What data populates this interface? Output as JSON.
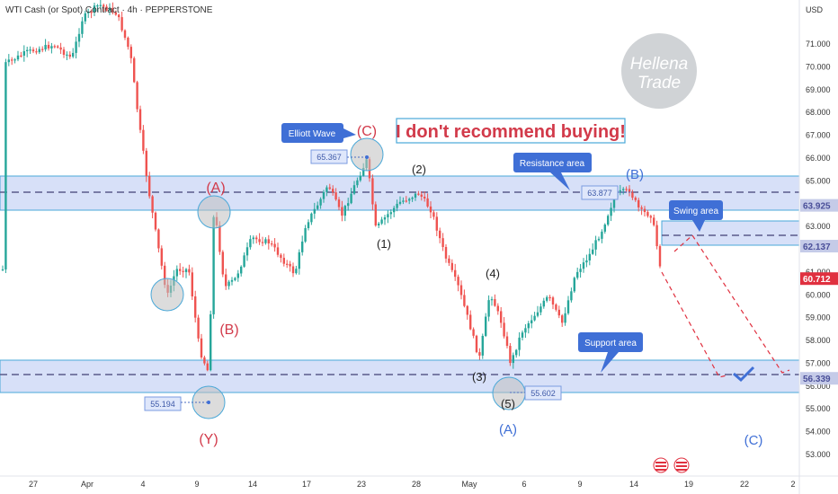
{
  "header": {
    "symbol_title": "WTI Cash (or Spot) Contract · 4h · PEPPERSTONE"
  },
  "currency": "USD",
  "price_axis": {
    "ticks": [
      "71.000",
      "70.000",
      "69.000",
      "68.000",
      "67.000",
      "66.000",
      "65.000",
      "64.000",
      "63.000",
      "62.000",
      "61.000",
      "60.000",
      "59.000",
      "58.000",
      "57.000",
      "56.000",
      "55.000",
      "54.000",
      "53.000"
    ],
    "tick_values": [
      71,
      70,
      69,
      68,
      67,
      66,
      65,
      64,
      63,
      62,
      61,
      60,
      59,
      58,
      57,
      56,
      55,
      54,
      53
    ],
    "badges": [
      {
        "label": "63.925",
        "value": 63.925,
        "color": "#ffffff",
        "bg": "#c5cbe8",
        "text_color": "#4a4f99"
      },
      {
        "label": "62.137",
        "value": 62.137,
        "color": "#ffffff",
        "bg": "#c5cbe8",
        "text_color": "#4a4f99"
      },
      {
        "label": "60.712",
        "value": 60.712,
        "bg": "#e0303f",
        "text_color": "#ffffff"
      },
      {
        "label": "56.339",
        "value": 56.339,
        "bg": "#c5cbe8",
        "text_color": "#4a4f99"
      }
    ]
  },
  "time_axis": {
    "labels": [
      "27",
      "Apr",
      "4",
      "9",
      "14",
      "17",
      "23",
      "28",
      "May",
      "6",
      "9",
      "14",
      "19",
      "22",
      "2"
    ]
  },
  "watermark": {
    "line1": "Hellena",
    "line2": "Trade"
  },
  "headline": "I don't recommend buying!",
  "callouts": {
    "elliott": "Elliott Wave",
    "resistance": "Resistance area",
    "support": "Support area",
    "swing": "Swing area"
  },
  "price_labels": {
    "p65367": "65.367",
    "p63877": "63.877",
    "p55194": "55.194",
    "p55602": "55.602"
  },
  "wave_labels": {
    "A_red": "(A)",
    "B_red": "(B)",
    "Y_red": "(Y)",
    "C_red": "(C)",
    "w1": "(1)",
    "w2": "(2)",
    "w3": "(3)",
    "w4": "(4)",
    "w5": "(5)",
    "A_blue": "(A)",
    "B_blue": "(B)",
    "C_blue": "(C)"
  },
  "levels": {
    "resistance_zone": [
      63.3,
      64.5
    ],
    "resistance_line": 63.925,
    "swing_zone": [
      61.7,
      62.7
    ],
    "swing_line": 62.137,
    "support_zone": [
      55.7,
      57.0
    ],
    "support_line": 56.339
  },
  "colors": {
    "up": "#26a69a",
    "down": "#ef5350",
    "zone": "#c9d6f5",
    "zone_line": "#5a5a8a",
    "accent_blue": "#3f6fd6",
    "red_label": "#d23a4a"
  }
}
